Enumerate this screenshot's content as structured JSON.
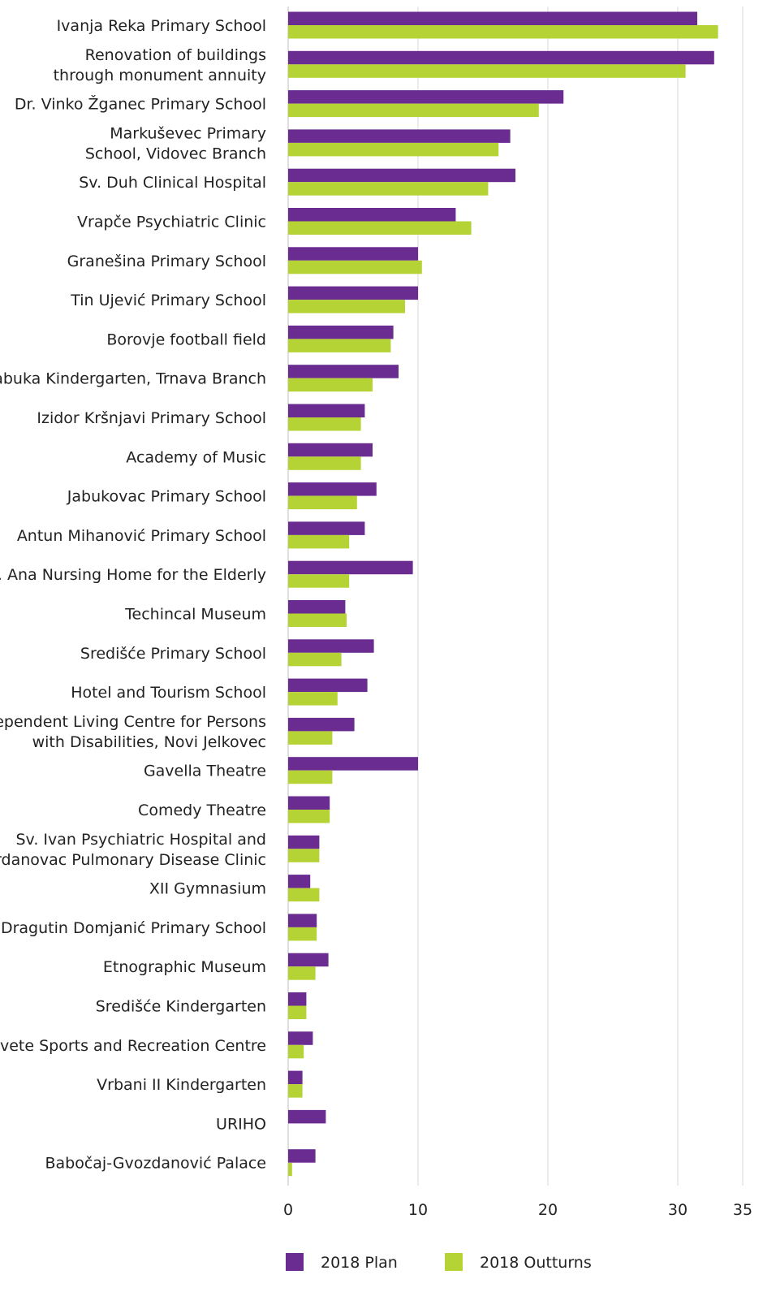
{
  "chart_data": {
    "type": "bar",
    "orientation": "horizontal",
    "categories": [
      [
        "Ivanja Reka Primary School"
      ],
      [
        "Renovation of buildings",
        "through monument annuity"
      ],
      [
        "Dr. Vinko Žganec Primary School"
      ],
      [
        "Markuševec Primary",
        "School, Vidovec Branch"
      ],
      [
        "Sv. Duh Clinical Hospital"
      ],
      [
        "Vrapče Psychiatric Clinic"
      ],
      [
        "Granešina Primary School"
      ],
      [
        "Tin Ujević Primary School"
      ],
      [
        "Borovje football field"
      ],
      [
        "Jabuka Kindergarten,  Trnava Branch"
      ],
      [
        "Izidor Kršnjavi Primary School"
      ],
      [
        "Academy of Music"
      ],
      [
        "Jabukovac Primary School"
      ],
      [
        "Antun Mihanović Primary School"
      ],
      [
        "Sv. Ana Nursing Home for the Elderly"
      ],
      [
        "Techincal Museum"
      ],
      [
        "Središće Primary School"
      ],
      [
        "Hotel and Tourism School"
      ],
      [
        "Independent Living Centre for Persons",
        "with Disabilities, Novi Jelkovec"
      ],
      [
        "Gavella Theatre"
      ],
      [
        "Comedy Theatre"
      ],
      [
        "Sv. Ivan Psychiatric Hospital and",
        "Jordanovac Pulmonary Disease Clinic"
      ],
      [
        "XII Gymnasium"
      ],
      [
        "Dragutin Domjanić Primary School"
      ],
      [
        "Etnographic Museum"
      ],
      [
        "Središće Kindergarten"
      ],
      [
        "Sesvete Sports and Recreation Centre"
      ],
      [
        "Vrbani II Kindergarten"
      ],
      [
        "URIHO"
      ],
      [
        "Babočaj-Gvozdanović Palace"
      ]
    ],
    "series": [
      {
        "name": "2018 Plan",
        "color": "#6a2c91",
        "values": [
          31.5,
          32.8,
          21.2,
          17.1,
          17.5,
          12.9,
          10.0,
          10.0,
          8.1,
          8.5,
          5.9,
          6.5,
          6.8,
          5.9,
          9.6,
          4.4,
          6.6,
          6.1,
          5.1,
          10.0,
          3.2,
          2.4,
          1.7,
          2.2,
          3.1,
          1.4,
          1.9,
          1.1,
          2.9,
          2.1
        ]
      },
      {
        "name": "2018 Outturns",
        "color": "#b5d334",
        "values": [
          33.1,
          30.6,
          19.3,
          16.2,
          15.4,
          14.1,
          10.3,
          9.0,
          7.9,
          6.5,
          5.6,
          5.6,
          5.3,
          4.7,
          4.7,
          4.5,
          4.1,
          3.8,
          3.4,
          3.4,
          3.2,
          2.4,
          2.4,
          2.2,
          2.1,
          1.4,
          1.2,
          1.1,
          0.0,
          0.3
        ]
      }
    ],
    "xlim": [
      0,
      35
    ],
    "xticks": [
      0,
      10,
      20,
      30,
      35
    ],
    "grid": true,
    "legend_position": "bottom"
  }
}
